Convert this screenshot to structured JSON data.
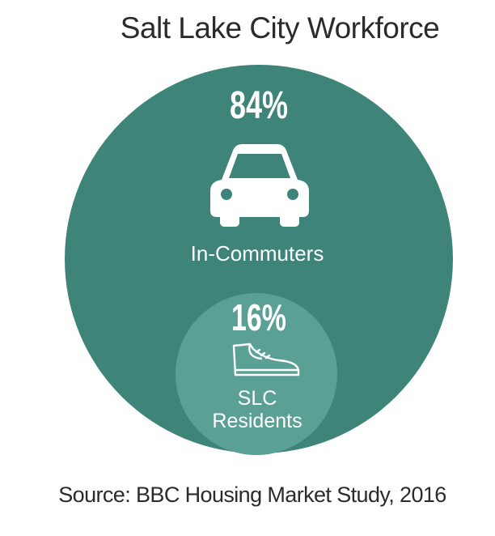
{
  "title": "Salt Lake City Workforce",
  "source": "Source: BBC Housing Market Study, 2016",
  "colors": {
    "outer": "#3e8479",
    "inner": "#5aa095",
    "text": "#ffffff"
  },
  "icons": {
    "outer": "car-icon",
    "inner": "shoe-icon"
  },
  "chart_data": {
    "type": "nested-circle",
    "title": "Salt Lake City Workforce",
    "unit": "%",
    "series": [
      {
        "name": "In-Commuters",
        "value": 84,
        "display": "84%",
        "label_lines": [
          "In-Commuters"
        ]
      },
      {
        "name": "SLC Residents",
        "value": 16,
        "display": "16%",
        "label_lines": [
          "SLC",
          "Residents"
        ]
      }
    ]
  }
}
